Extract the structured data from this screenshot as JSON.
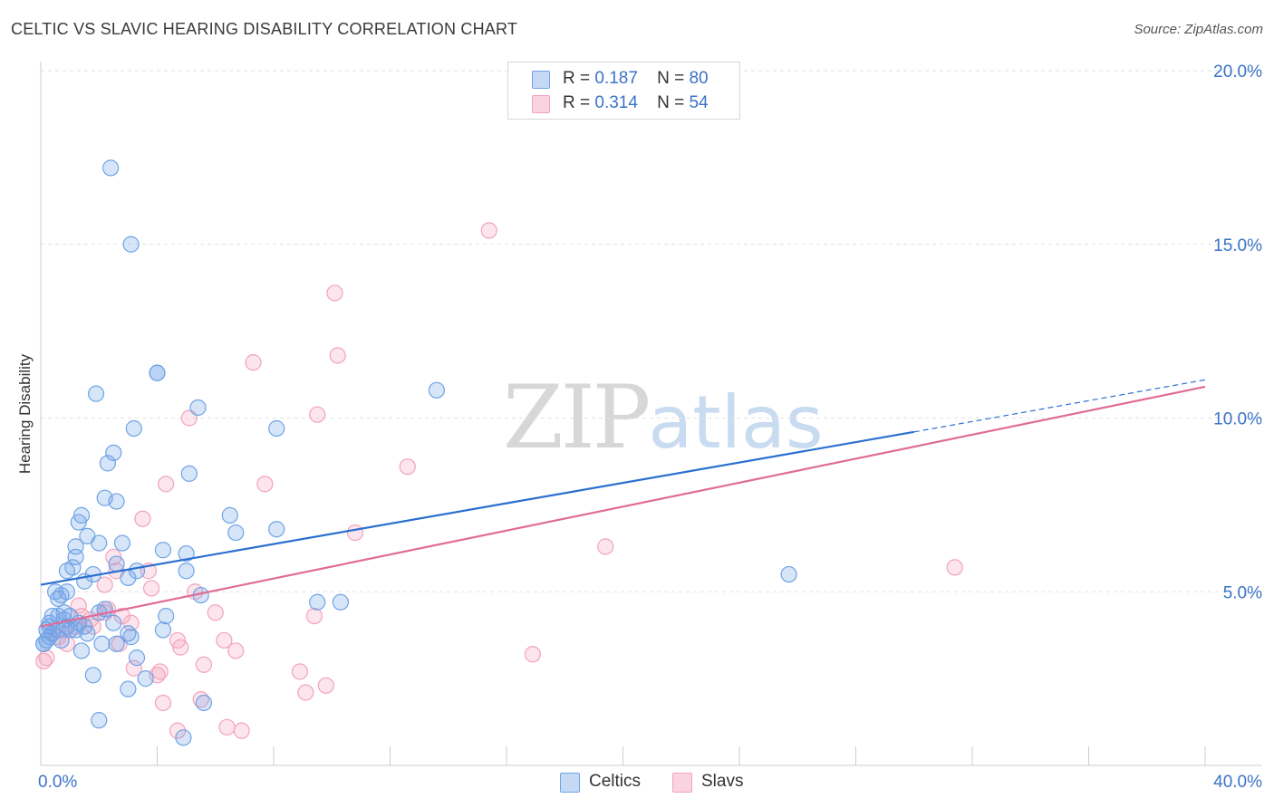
{
  "title": "CELTIC VS SLAVIC HEARING DISABILITY CORRELATION CHART",
  "source": "Source: ZipAtlas.com",
  "watermark": {
    "zip": "ZIP",
    "atlas": "atlas"
  },
  "legend": [
    {
      "r_label": "R =",
      "r_value": "0.187",
      "n_label": "N =",
      "n_value": "80"
    },
    {
      "r_label": "R =",
      "r_value": "0.314",
      "n_label": "N =",
      "n_value": "54"
    }
  ],
  "chart_data": {
    "type": "scatter",
    "title": "CELTIC VS SLAVIC HEARING DISABILITY CORRELATION CHART",
    "xlabel": "",
    "ylabel": "Hearing Disability",
    "xlim": [
      0,
      40
    ],
    "ylim": [
      0,
      20
    ],
    "x_tick_labels": [
      "0.0%",
      "40.0%"
    ],
    "y_ticks": [
      {
        "value": 5,
        "label": "5.0%"
      },
      {
        "value": 10,
        "label": "10.0%"
      },
      {
        "value": 15,
        "label": "15.0%"
      },
      {
        "value": 20,
        "label": "20.0%"
      }
    ],
    "grid": true,
    "legend_position": "top-center",
    "series": [
      {
        "name": "Celtics",
        "color": "#6fa3e6",
        "trend_color": "#2a6fd0",
        "r": 0.187,
        "n": 80,
        "trend": {
          "x0": 0,
          "y0": 5.2,
          "x1": 30,
          "y1": 9.6,
          "dash_to_x": 40,
          "dash_to_y": 11.1
        },
        "points": [
          [
            2.4,
            17.2
          ],
          [
            3.1,
            15.0
          ],
          [
            4.0,
            11.3
          ],
          [
            4.0,
            11.3
          ],
          [
            13.6,
            10.8
          ],
          [
            1.9,
            10.7
          ],
          [
            5.4,
            10.3
          ],
          [
            8.1,
            9.7
          ],
          [
            3.2,
            9.7
          ],
          [
            2.5,
            9.0
          ],
          [
            2.3,
            8.7
          ],
          [
            5.1,
            8.4
          ],
          [
            2.2,
            7.7
          ],
          [
            2.6,
            7.6
          ],
          [
            6.5,
            7.2
          ],
          [
            1.4,
            7.2
          ],
          [
            1.3,
            7.0
          ],
          [
            8.1,
            6.8
          ],
          [
            6.7,
            6.7
          ],
          [
            1.6,
            6.6
          ],
          [
            2.0,
            6.4
          ],
          [
            2.8,
            6.4
          ],
          [
            1.2,
            6.3
          ],
          [
            4.2,
            6.2
          ],
          [
            5.0,
            6.1
          ],
          [
            1.2,
            6.0
          ],
          [
            2.6,
            5.8
          ],
          [
            1.1,
            5.7
          ],
          [
            0.9,
            5.6
          ],
          [
            3.3,
            5.6
          ],
          [
            5.0,
            5.6
          ],
          [
            1.8,
            5.5
          ],
          [
            25.7,
            5.5
          ],
          [
            3.0,
            5.4
          ],
          [
            1.5,
            5.3
          ],
          [
            0.9,
            5.0
          ],
          [
            0.5,
            5.0
          ],
          [
            0.7,
            4.9
          ],
          [
            5.5,
            4.9
          ],
          [
            0.6,
            4.8
          ],
          [
            9.5,
            4.7
          ],
          [
            10.3,
            4.7
          ],
          [
            2.2,
            4.5
          ],
          [
            0.8,
            4.4
          ],
          [
            2.0,
            4.4
          ],
          [
            1.0,
            4.3
          ],
          [
            0.4,
            4.3
          ],
          [
            4.3,
            4.3
          ],
          [
            0.6,
            4.3
          ],
          [
            0.8,
            4.2
          ],
          [
            1.3,
            4.1
          ],
          [
            2.5,
            4.1
          ],
          [
            0.3,
            4.0
          ],
          [
            0.9,
            4.0
          ],
          [
            1.5,
            4.0
          ],
          [
            1.2,
            3.9
          ],
          [
            0.6,
            3.9
          ],
          [
            0.2,
            3.9
          ],
          [
            1.0,
            3.9
          ],
          [
            4.2,
            3.9
          ],
          [
            0.4,
            3.8
          ],
          [
            3.0,
            3.8
          ],
          [
            1.6,
            3.8
          ],
          [
            3.1,
            3.7
          ],
          [
            0.3,
            3.7
          ],
          [
            0.7,
            3.6
          ],
          [
            0.2,
            3.6
          ],
          [
            0.1,
            3.5
          ],
          [
            2.1,
            3.5
          ],
          [
            2.6,
            3.5
          ],
          [
            1.4,
            3.3
          ],
          [
            3.3,
            3.1
          ],
          [
            1.8,
            2.6
          ],
          [
            3.6,
            2.5
          ],
          [
            3.0,
            2.2
          ],
          [
            5.6,
            1.8
          ],
          [
            2.0,
            1.3
          ],
          [
            4.9,
            0.8
          ],
          [
            0.1,
            3.5
          ],
          [
            0.3,
            4.1
          ]
        ]
      },
      {
        "name": "Slavs",
        "color": "#f3a3bc",
        "trend_color": "#e06c96",
        "r": 0.314,
        "n": 54,
        "trend": {
          "x0": 0,
          "y0": 4.0,
          "x1": 40,
          "y1": 10.9
        },
        "points": [
          [
            15.4,
            15.4
          ],
          [
            10.1,
            13.6
          ],
          [
            10.2,
            11.8
          ],
          [
            7.3,
            11.6
          ],
          [
            9.5,
            10.1
          ],
          [
            5.1,
            10.0
          ],
          [
            12.6,
            8.6
          ],
          [
            4.3,
            8.1
          ],
          [
            7.7,
            8.1
          ],
          [
            3.5,
            7.1
          ],
          [
            10.8,
            6.7
          ],
          [
            19.4,
            6.3
          ],
          [
            2.5,
            6.0
          ],
          [
            3.7,
            5.6
          ],
          [
            31.4,
            5.7
          ],
          [
            2.6,
            5.6
          ],
          [
            2.2,
            5.2
          ],
          [
            3.8,
            5.1
          ],
          [
            5.3,
            5.0
          ],
          [
            1.3,
            4.6
          ],
          [
            2.3,
            4.5
          ],
          [
            2.2,
            4.4
          ],
          [
            6.0,
            4.4
          ],
          [
            2.8,
            4.3
          ],
          [
            9.4,
            4.3
          ],
          [
            1.4,
            4.3
          ],
          [
            1.7,
            4.2
          ],
          [
            3.1,
            4.1
          ],
          [
            1.2,
            4.0
          ],
          [
            1.8,
            4.0
          ],
          [
            0.8,
            3.9
          ],
          [
            0.4,
            3.8
          ],
          [
            0.6,
            3.7
          ],
          [
            6.3,
            3.6
          ],
          [
            2.7,
            3.5
          ],
          [
            0.9,
            3.5
          ],
          [
            4.8,
            3.4
          ],
          [
            4.7,
            3.6
          ],
          [
            6.7,
            3.3
          ],
          [
            16.9,
            3.2
          ],
          [
            0.1,
            3.0
          ],
          [
            5.6,
            2.9
          ],
          [
            3.2,
            2.8
          ],
          [
            4.1,
            2.7
          ],
          [
            8.9,
            2.7
          ],
          [
            4.0,
            2.6
          ],
          [
            9.1,
            2.1
          ],
          [
            9.8,
            2.3
          ],
          [
            5.5,
            1.9
          ],
          [
            4.2,
            1.8
          ],
          [
            6.4,
            1.1
          ],
          [
            4.7,
            1.0
          ],
          [
            6.9,
            1.0
          ],
          [
            0.2,
            3.1
          ]
        ]
      }
    ]
  }
}
